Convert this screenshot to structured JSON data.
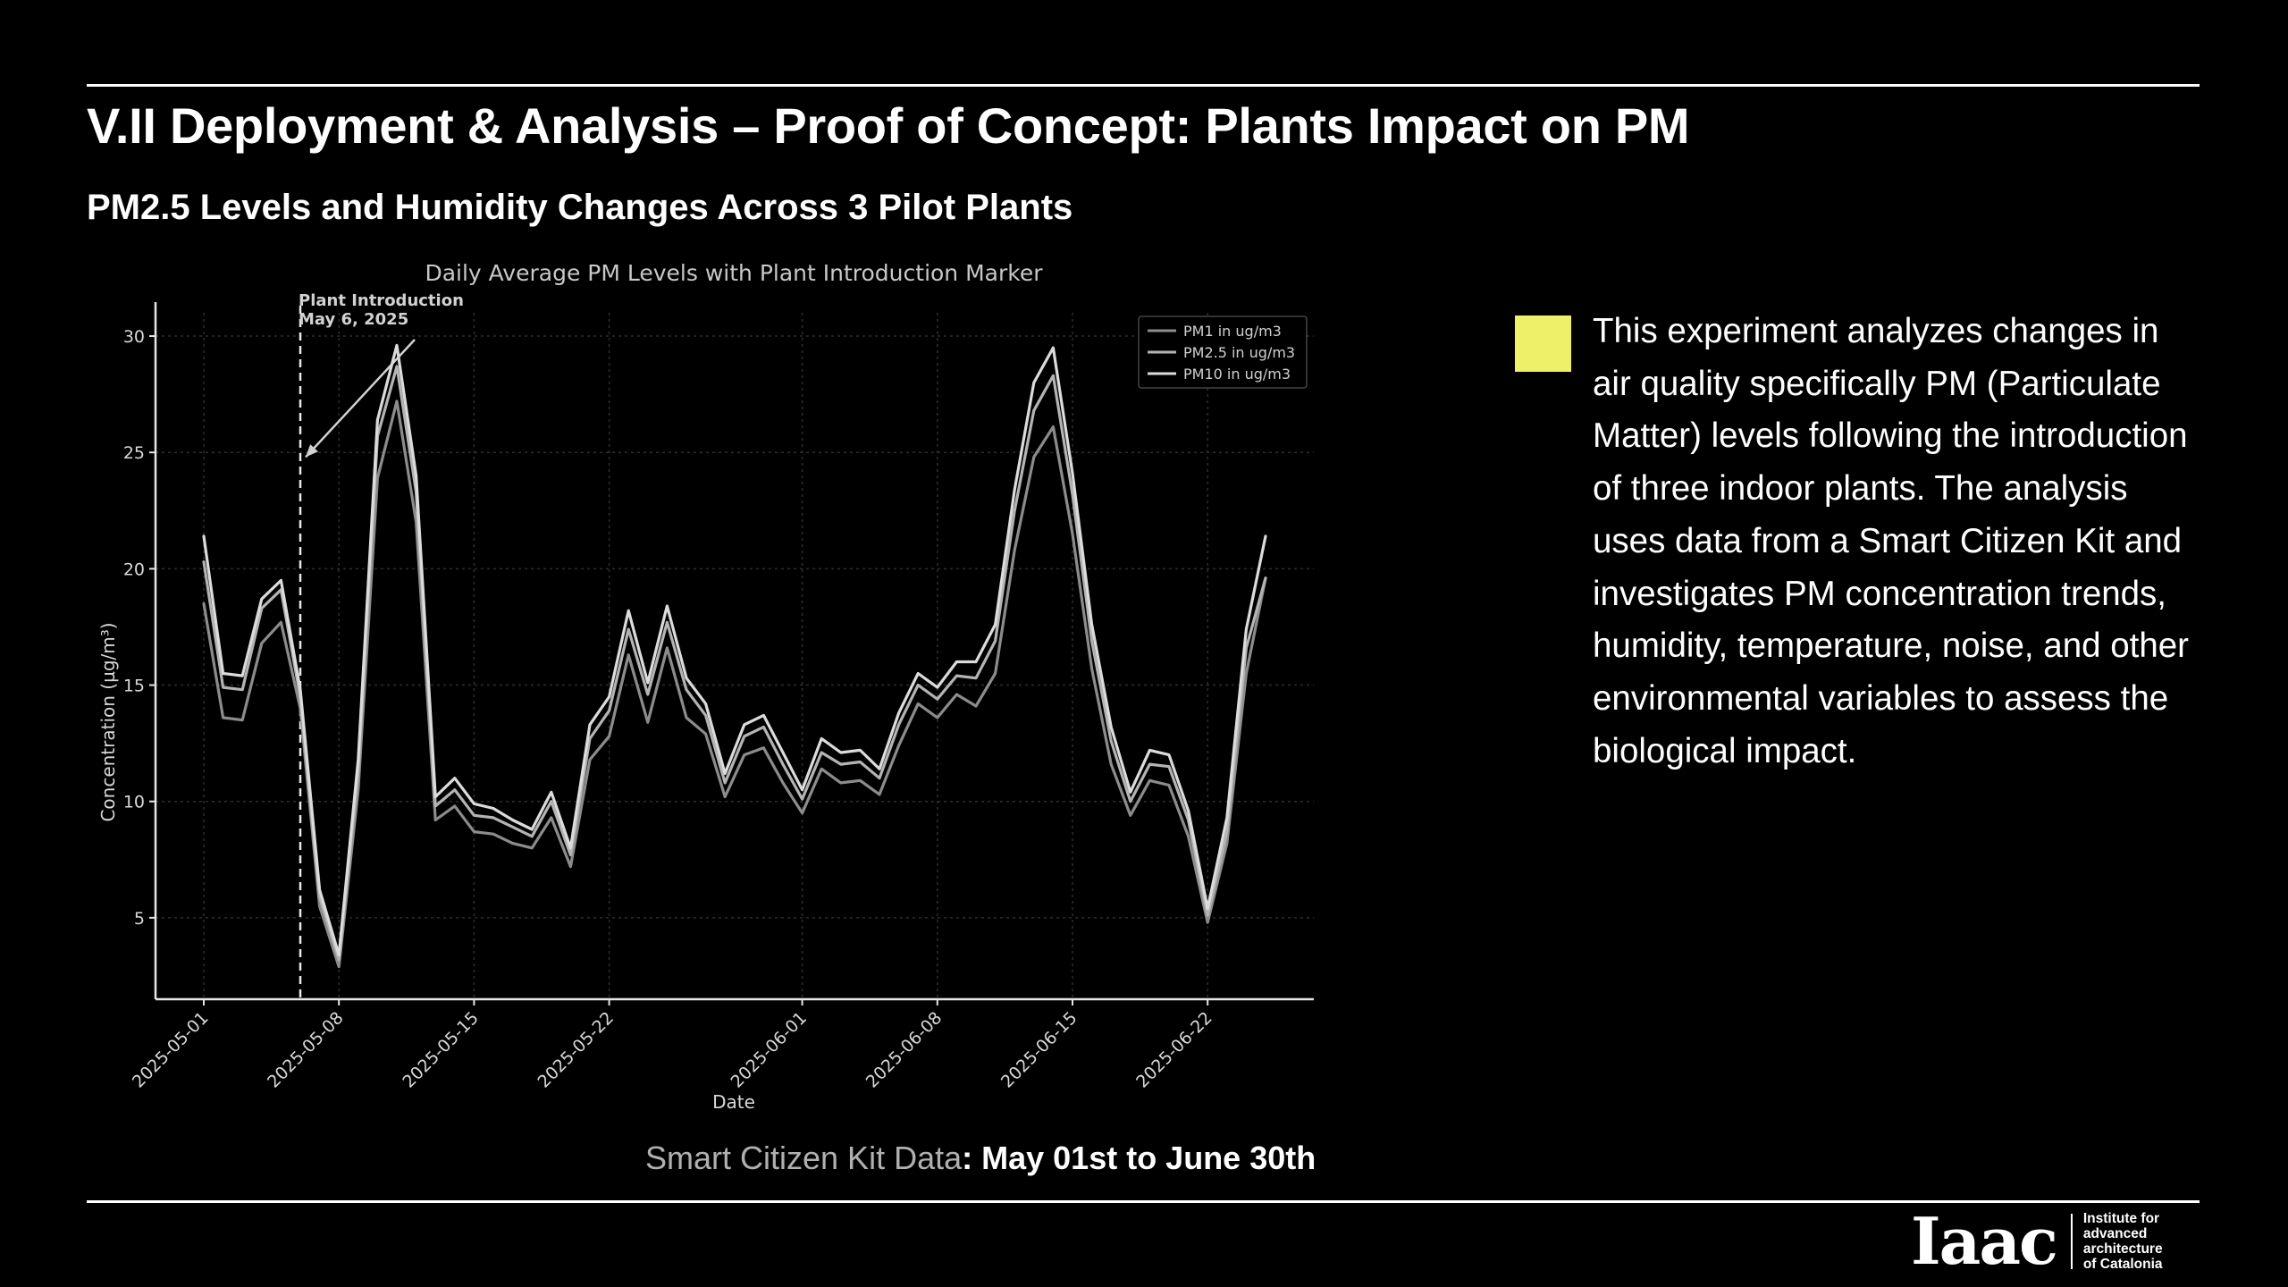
{
  "slide": {
    "title": "V.II Deployment & Analysis – Proof of Concept: Plants Impact on PM",
    "subtitle": "PM2.5 Levels and Humidity Changes Across 3 Pilot Plants"
  },
  "source_line": {
    "label": "Smart Citizen Kit Data",
    "range": ": May 01st to June 30th"
  },
  "description": {
    "swatch_color": "#eef06a",
    "text": "This experiment analyzes changes in air quality specifically PM (Particulate Matter) levels following the introduction of three indoor plants. The analysis uses data from a Smart Citizen Kit and investigates PM concentration trends, humidity, temperature, noise, and other environmental variables to assess the biological impact."
  },
  "logo": {
    "mark": "Iaac",
    "lines": [
      "Institute for",
      "advanced",
      "architecture",
      "of Catalonia"
    ]
  },
  "chart_data": {
    "type": "line",
    "title": "Daily Average PM Levels with Plant Introduction Marker",
    "xlabel": "Date",
    "ylabel": "Concentration (µg/m³)",
    "ylim": [
      1.5,
      31
    ],
    "yticks": [
      5,
      10,
      15,
      20,
      25,
      30
    ],
    "xticks": [
      "2025-05-01",
      "2025-05-08",
      "2025-05-15",
      "2025-05-22",
      "2025-06-01",
      "2025-06-08",
      "2025-06-15",
      "2025-06-22"
    ],
    "grid": true,
    "legend_position": "top-right",
    "x_start": "2025-05-01",
    "x_end": "2025-06-25",
    "annotation": {
      "label_line1": "Plant Introduction",
      "label_line2": "May 6, 2025",
      "date": "2025-05-06"
    },
    "x": [
      "2025-05-01",
      "2025-05-02",
      "2025-05-03",
      "2025-05-04",
      "2025-05-05",
      "2025-05-06",
      "2025-05-07",
      "2025-05-08",
      "2025-05-09",
      "2025-05-10",
      "2025-05-11",
      "2025-05-12",
      "2025-05-13",
      "2025-05-14",
      "2025-05-15",
      "2025-05-16",
      "2025-05-17",
      "2025-05-18",
      "2025-05-19",
      "2025-05-20",
      "2025-05-21",
      "2025-05-22",
      "2025-05-23",
      "2025-05-24",
      "2025-05-25",
      "2025-05-26",
      "2025-05-27",
      "2025-05-28",
      "2025-05-29",
      "2025-05-30",
      "2025-05-31",
      "2025-06-01",
      "2025-06-02",
      "2025-06-03",
      "2025-06-04",
      "2025-06-05",
      "2025-06-06",
      "2025-06-07",
      "2025-06-08",
      "2025-06-09",
      "2025-06-10",
      "2025-06-11",
      "2025-06-12",
      "2025-06-13",
      "2025-06-14",
      "2025-06-15",
      "2025-06-16",
      "2025-06-17",
      "2025-06-18",
      "2025-06-19",
      "2025-06-20",
      "2025-06-21",
      "2025-06-22",
      "2025-06-23",
      "2025-06-24",
      "2025-06-25"
    ],
    "series": [
      {
        "name": "PM1 in ug/m3",
        "color": "#8c8c8c",
        "values": [
          18.5,
          13.6,
          13.5,
          16.8,
          17.7,
          14.0,
          5.5,
          2.9,
          10.5,
          23.9,
          27.2,
          22.0,
          9.2,
          9.8,
          8.7,
          8.6,
          8.2,
          8.0,
          9.3,
          7.2,
          11.8,
          12.8,
          16.3,
          13.4,
          16.6,
          13.6,
          12.9,
          10.2,
          12.0,
          12.3,
          10.8,
          9.5,
          11.4,
          10.8,
          10.9,
          10.3,
          12.4,
          14.2,
          13.6,
          14.6,
          14.1,
          15.5,
          20.8,
          24.8,
          26.1,
          21.5,
          15.7,
          11.6,
          9.4,
          10.9,
          10.7,
          8.5,
          4.8,
          8.2,
          15.5,
          19.6
        ]
      },
      {
        "name": "PM2.5 in ug/m3",
        "color": "#b4b4b4",
        "values": [
          20.3,
          14.9,
          14.8,
          18.3,
          19.1,
          14.5,
          5.9,
          3.2,
          11.3,
          25.7,
          28.7,
          23.3,
          9.8,
          10.5,
          9.4,
          9.3,
          8.9,
          8.5,
          10.0,
          7.7,
          12.7,
          13.9,
          17.4,
          14.6,
          17.7,
          14.8,
          13.7,
          10.8,
          12.8,
          13.2,
          11.6,
          10.1,
          12.1,
          11.6,
          11.7,
          11.0,
          13.3,
          15.0,
          14.4,
          15.4,
          15.3,
          16.9,
          22.5,
          26.8,
          28.3,
          23.2,
          16.9,
          12.6,
          10.0,
          11.6,
          11.5,
          9.2,
          5.1,
          8.7,
          16.6,
          19.6
        ]
      },
      {
        "name": "PM10 in ug/m3",
        "color": "#dcdcdc",
        "values": [
          21.4,
          15.5,
          15.4,
          18.7,
          19.5,
          14.8,
          6.2,
          3.4,
          11.8,
          26.4,
          29.6,
          24.0,
          10.2,
          11.0,
          9.9,
          9.7,
          9.2,
          8.8,
          10.4,
          8.0,
          13.3,
          14.5,
          18.2,
          15.1,
          18.4,
          15.3,
          14.2,
          11.2,
          13.3,
          13.7,
          12.1,
          10.5,
          12.7,
          12.1,
          12.2,
          11.4,
          13.8,
          15.5,
          14.9,
          16.0,
          16.0,
          17.6,
          23.4,
          28.0,
          29.5,
          24.1,
          17.6,
          13.2,
          10.4,
          12.2,
          12.0,
          9.6,
          5.4,
          9.3,
          17.4,
          21.4
        ]
      }
    ]
  }
}
